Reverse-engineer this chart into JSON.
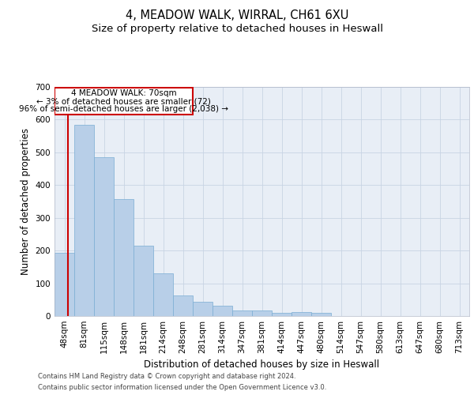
{
  "title": "4, MEADOW WALK, WIRRAL, CH61 6XU",
  "subtitle": "Size of property relative to detached houses in Heswall",
  "xlabel": "Distribution of detached houses by size in Heswall",
  "ylabel": "Number of detached properties",
  "categories": [
    "48sqm",
    "81sqm",
    "115sqm",
    "148sqm",
    "181sqm",
    "214sqm",
    "248sqm",
    "281sqm",
    "314sqm",
    "347sqm",
    "381sqm",
    "414sqm",
    "447sqm",
    "480sqm",
    "514sqm",
    "547sqm",
    "580sqm",
    "613sqm",
    "647sqm",
    "680sqm",
    "713sqm"
  ],
  "values": [
    193,
    583,
    485,
    357,
    215,
    131,
    63,
    44,
    32,
    17,
    17,
    9,
    11,
    10,
    0,
    0,
    0,
    0,
    0,
    0,
    0
  ],
  "bar_color": "#b8cfe8",
  "bar_edge_color": "#7aadd4",
  "annotation_title": "4 MEADOW WALK: 70sqm",
  "annotation_line1": "← 3% of detached houses are smaller (72)",
  "annotation_line2": "96% of semi-detached houses are larger (2,038) →",
  "vline_color": "#cc0000",
  "annotation_box_color": "#cc0000",
  "background_color": "#ffffff",
  "plot_bg_color": "#e8eef6",
  "grid_color": "#c8d4e4",
  "ylim": [
    0,
    700
  ],
  "yticks": [
    0,
    100,
    200,
    300,
    400,
    500,
    600,
    700
  ],
  "footer_line1": "Contains HM Land Registry data © Crown copyright and database right 2024.",
  "footer_line2": "Contains public sector information licensed under the Open Government Licence v3.0.",
  "title_fontsize": 10.5,
  "subtitle_fontsize": 9.5,
  "axis_label_fontsize": 8.5,
  "tick_fontsize": 7.5,
  "annotation_fontsize": 7.5,
  "footer_fontsize": 6.0
}
